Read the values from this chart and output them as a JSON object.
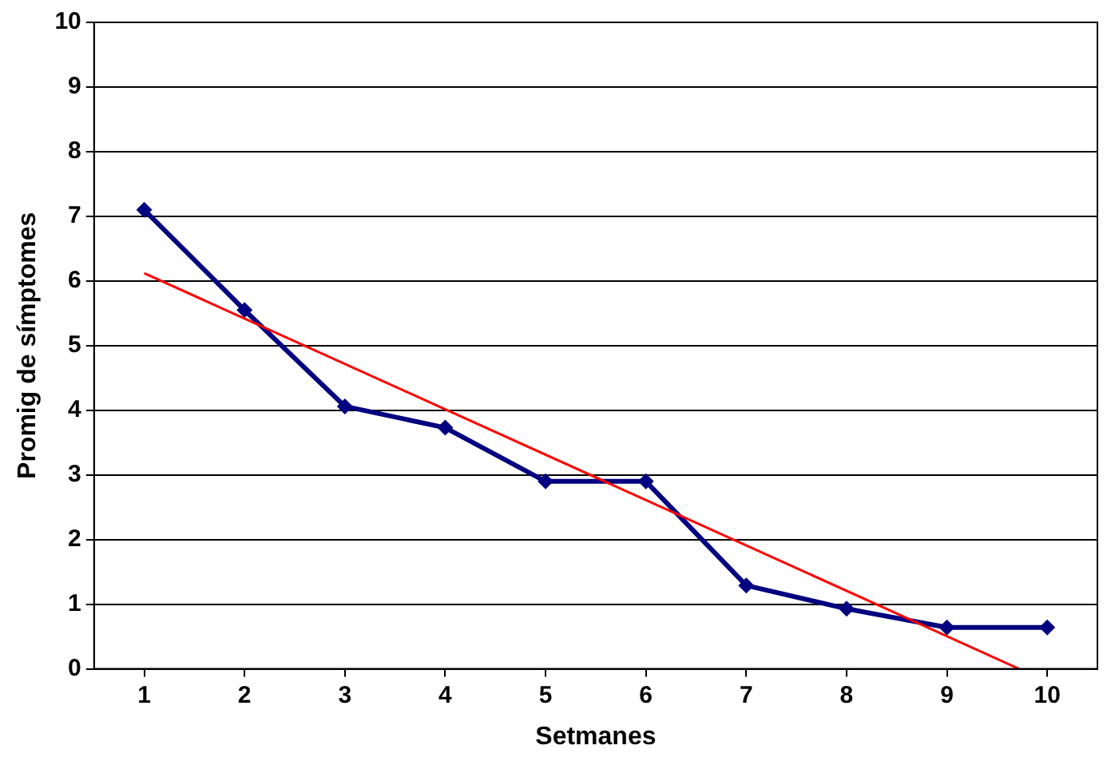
{
  "chart_data": {
    "type": "line",
    "xlabel": "Setmanes",
    "ylabel": "Promig de símptomes",
    "x": [
      1,
      2,
      3,
      4,
      5,
      6,
      7,
      8,
      9,
      10
    ],
    "xlim": [
      0.5,
      10.5
    ],
    "xticks": [
      1,
      2,
      3,
      4,
      5,
      6,
      7,
      8,
      9,
      10
    ],
    "ylim": [
      0,
      10
    ],
    "yticks": [
      0,
      1,
      2,
      3,
      4,
      5,
      6,
      7,
      8,
      9,
      10
    ],
    "grid": "y",
    "legend": false,
    "marker": "diamond",
    "line_style": "solid",
    "series": [
      {
        "color": "#000080",
        "values": [
          7.1,
          5.55,
          4.06,
          3.73,
          2.9,
          2.9,
          1.29,
          0.93,
          0.64,
          0.64
        ]
      },
      {
        "type": "line",
        "color": "#ff0000",
        "marker": "none",
        "x": [
          1,
          9.72
        ],
        "values": [
          6.12,
          0
        ]
      }
    ]
  }
}
